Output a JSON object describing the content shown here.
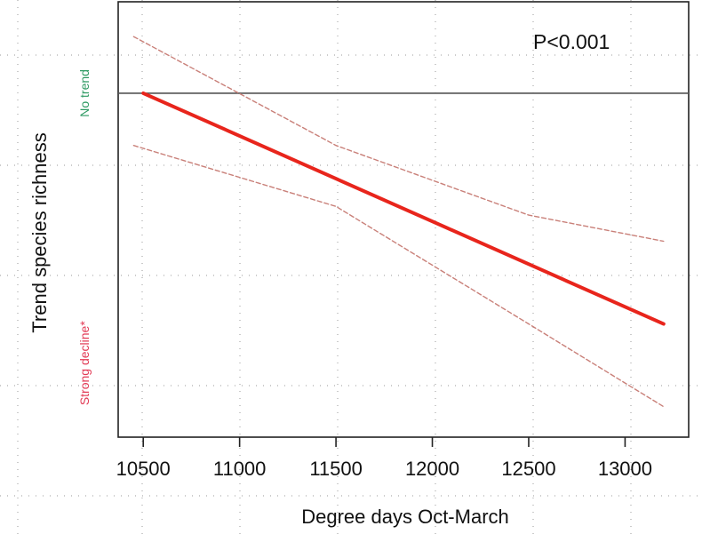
{
  "chart_data": {
    "type": "line",
    "title": "",
    "xlabel": "Degree days Oct-March",
    "ylabel": "Trend species richness",
    "xlim": [
      10370,
      13330
    ],
    "ylim": [
      0,
      100
    ],
    "x_ticks": [
      10500,
      11000,
      11500,
      12000,
      12500,
      13000
    ],
    "x_tick_labels": [
      "10500",
      "11000",
      "11500",
      "12000",
      "12500",
      "13000"
    ],
    "grid": true,
    "annotation": "P<0.001",
    "y_reference": {
      "name": "No trend",
      "value": 79,
      "color": "#555555"
    },
    "y_side_labels": [
      {
        "text": "No trend",
        "value": 79,
        "color": "#2e9a62"
      },
      {
        "text": "Strong decline*",
        "value": 17,
        "color": "#e23a55"
      }
    ],
    "series": [
      {
        "role": "fit",
        "x": [
          10500,
          13200
        ],
        "y": [
          79,
          26
        ],
        "color": "#e8251c",
        "style": "solid"
      },
      {
        "role": "upper-ci",
        "x": [
          10450,
          11500,
          12500,
          13200
        ],
        "y": [
          92,
          67,
          51,
          45
        ],
        "color": "#c98079",
        "style": "dashed"
      },
      {
        "role": "lower-ci",
        "x": [
          10450,
          11500,
          12500,
          13200
        ],
        "y": [
          67,
          53,
          26,
          7
        ],
        "color": "#c98079",
        "style": "dashed"
      }
    ]
  }
}
